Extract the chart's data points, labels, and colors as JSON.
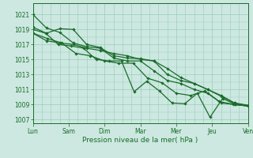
{
  "xlabel": "Pression niveau de la mer( hPa )",
  "bg_color": "#cce8e0",
  "grid_color": "#99ccbb",
  "line_color": "#1a6b2a",
  "x_labels": [
    "Lun",
    "Sam",
    "Dim",
    "Mar",
    "Mer",
    "Jeu",
    "Ven"
  ],
  "ylim": [
    1006.5,
    1022.5
  ],
  "yticks": [
    1007,
    1009,
    1011,
    1013,
    1015,
    1017,
    1019,
    1021
  ],
  "series": [
    [
      1021.0,
      1019.2,
      1018.6,
      1017.2,
      1016.7,
      1016.5,
      1015.2,
      1014.8,
      1014.8,
      1013.5,
      1012.2,
      1011.8,
      1011.0,
      1010.5,
      1009.2,
      1009.0,
      1008.8
    ],
    [
      1019.3,
      1018.5,
      1019.1,
      1019.0,
      1017.0,
      1016.6,
      1015.5,
      1015.2,
      1015.1,
      1014.8,
      1013.8,
      1012.6,
      1011.8,
      1011.0,
      1010.2,
      1009.2,
      1008.9
    ],
    [
      1018.5,
      1017.5,
      1017.2,
      1017.0,
      1016.5,
      1016.2,
      1015.8,
      1015.5,
      1015.0,
      1014.8,
      1013.0,
      1012.2,
      1011.8,
      1011.0,
      1010.1,
      1009.2,
      1008.8
    ],
    [
      1018.5,
      1017.8,
      1017.2,
      1015.8,
      1015.5,
      1014.8,
      1014.5,
      1014.5,
      1012.5,
      1011.9,
      1010.5,
      1010.2,
      1010.8,
      1009.4,
      1009.0,
      1008.8
    ],
    [
      1019.0,
      1018.5,
      1017.0,
      1016.8,
      1016.5,
      1015.0,
      1014.8,
      1014.8,
      1010.7,
      1012.1,
      1010.8,
      1009.2,
      1009.1,
      1010.5,
      1007.3,
      1009.8,
      1009.0,
      1008.8
    ]
  ],
  "marker": "D",
  "marker_size": 1.8,
  "line_width": 0.9
}
